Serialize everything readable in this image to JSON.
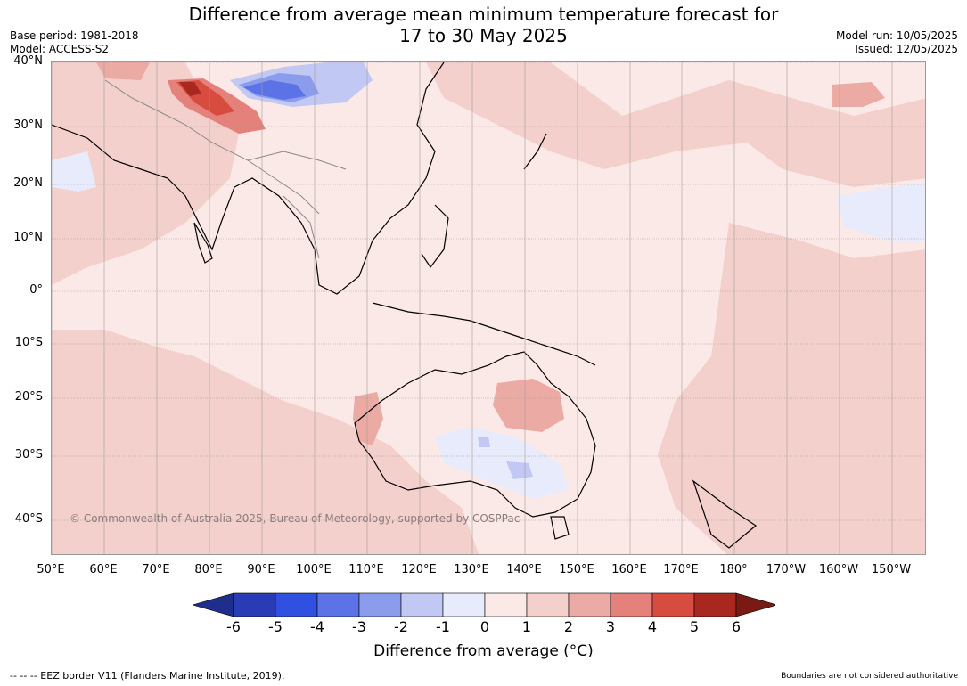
{
  "title_line1": "Difference from average mean minimum temperature forecast for",
  "title_line2": "17 to 30 May 2025",
  "base_period": "Base period: 1981-2018",
  "model": "Model: ACCESS-S2",
  "model_run": "Model run: 10/05/2025",
  "issued": "Issued: 12/05/2025",
  "lat_labels": [
    "40°N",
    "30°N",
    "20°N",
    "10°N",
    "0°",
    "10°S",
    "20°S",
    "30°S",
    "40°S"
  ],
  "lon_labels": [
    "50°E",
    "60°E",
    "70°E",
    "80°E",
    "90°E",
    "100°E",
    "110°E",
    "120°E",
    "130°E",
    "140°E",
    "150°E",
    "160°E",
    "170°E",
    "180°",
    "170°W",
    "160°W",
    "150°W"
  ],
  "copyright": "© Commonwealth of Australia 2025, Bureau of Meteorology, supported by COSPPac",
  "colorbar": {
    "ticks": [
      "-6",
      "-5",
      "-4",
      "-3",
      "-2",
      "-1",
      "0",
      "1",
      "2",
      "3",
      "4",
      "5",
      "6"
    ],
    "colors": [
      "#1f2e8a",
      "#2a3cb5",
      "#3050e0",
      "#5b73e6",
      "#8b9cec",
      "#c0c8f3",
      "#e8ebfb",
      "#fbe9e7",
      "#f4d0cc",
      "#ecaaa4",
      "#e4817a",
      "#d84c40",
      "#a8271f",
      "#7a1a14"
    ],
    "title": "Difference from average (°C)"
  },
  "eez_note": "--  --  -- EEZ border V11 (Flanders Marine Institute, 2019).",
  "boundaries_note": "Boundaries are not considered authoritative"
}
